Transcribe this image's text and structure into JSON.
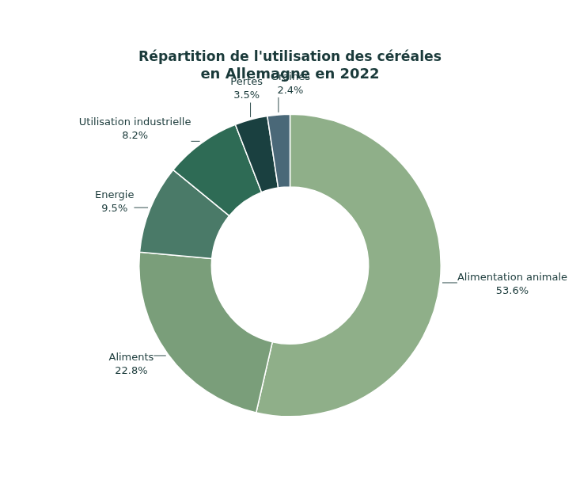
{
  "chart_data": {
    "type": "donut",
    "title": [
      "Répartition de l'utilisation des céréales",
      "en Allemagne en 2022"
    ],
    "categories": [
      "Alimentation animale",
      "Aliments",
      "Energie",
      "Utilisation industrielle",
      "Pertes",
      "Graines"
    ],
    "values": [
      53.6,
      22.8,
      9.5,
      8.2,
      3.5,
      2.4
    ],
    "value_labels": [
      "53.6%",
      "22.8%",
      "9.5%",
      "8.2%",
      "3.5%",
      "2.4%"
    ],
    "colors": [
      "#8faf89",
      "#7a9e7a",
      "#4a7a68",
      "#2e6b55",
      "#1a4040",
      "#4a6878"
    ],
    "data_labels": true
  }
}
